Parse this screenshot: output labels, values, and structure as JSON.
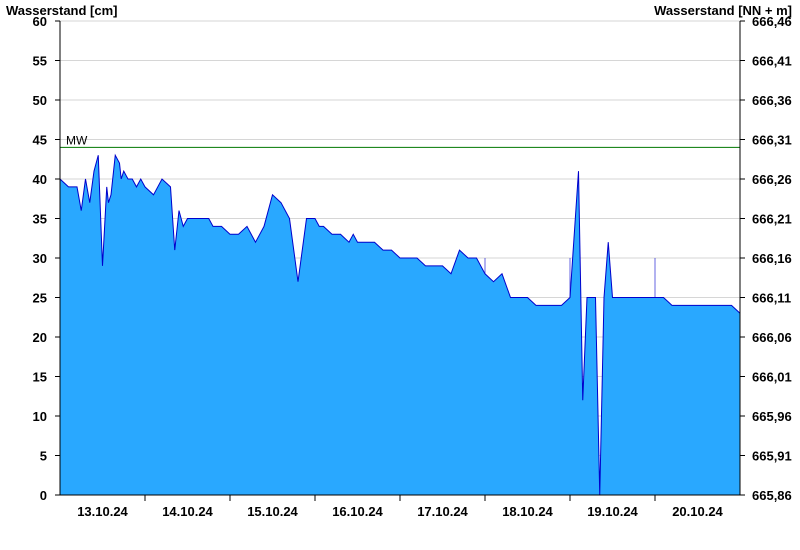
{
  "chart_data": {
    "type": "area",
    "ylabel_left": "Wasserstand [cm]",
    "ylabel_right": "Wasserstand [NN + m]",
    "ylim": [
      0,
      60
    ],
    "yticks": [
      0,
      5,
      10,
      15,
      20,
      25,
      30,
      35,
      40,
      45,
      50,
      55,
      60
    ],
    "right_ticks": [
      "665,86",
      "665,91",
      "665,96",
      "666,01",
      "666,06",
      "666,11",
      "666,16",
      "666,21",
      "666,26",
      "666,31",
      "666,36",
      "666,41",
      "666,46"
    ],
    "xlim": [
      0,
      8
    ],
    "xtick_labels": [
      "13.10.24",
      "14.10.24",
      "15.10.24",
      "16.10.24",
      "17.10.24",
      "18.10.24",
      "19.10.24",
      "20.10.24"
    ],
    "grid": true,
    "fill_color": "#29a8ff",
    "line_color": "#0000cc",
    "mw": {
      "label": "MW",
      "value": 44,
      "color": "#007700"
    },
    "series": [
      {
        "x": [
          0,
          0.1,
          0.15,
          0.2,
          0.25,
          0.3,
          0.35,
          0.4,
          0.45,
          0.5,
          0.55,
          0.57,
          0.6,
          0.65,
          0.7,
          0.72,
          0.75,
          0.8,
          0.85,
          0.9,
          0.95,
          1.0,
          1.1,
          1.2,
          1.3,
          1.35,
          1.4,
          1.45,
          1.5,
          1.6,
          1.7,
          1.75,
          1.8,
          1.9,
          2.0,
          2.1,
          2.2,
          2.3,
          2.35,
          2.4,
          2.5,
          2.6,
          2.7,
          2.8,
          2.9,
          3.0,
          3.05,
          3.1,
          3.2,
          3.3,
          3.4,
          3.45,
          3.5,
          3.6,
          3.7,
          3.8,
          3.9,
          4.0,
          4.1,
          4.2,
          4.3,
          4.4,
          4.5,
          4.6,
          4.7,
          4.8,
          4.9,
          5.0,
          5.1,
          5.2,
          5.3,
          5.4,
          5.5,
          5.6,
          5.7,
          5.8,
          5.9,
          6.0,
          6.1,
          6.15,
          6.2,
          6.3,
          6.35,
          6.4,
          6.45,
          6.5,
          6.6,
          6.7,
          6.8,
          6.9,
          7.0,
          7.1,
          7.2,
          7.3,
          7.4,
          7.5,
          7.6,
          7.7,
          7.8,
          7.9,
          8.0
        ],
        "y": [
          40,
          39,
          39,
          39,
          36,
          40,
          37,
          41,
          43,
          29,
          39,
          37,
          38,
          43,
          42,
          40,
          41,
          40,
          40,
          39,
          40,
          39,
          38,
          40,
          39,
          31,
          36,
          34,
          35,
          35,
          35,
          35,
          34,
          34,
          33,
          33,
          34,
          32,
          33,
          34,
          38,
          37,
          35,
          27,
          35,
          35,
          34,
          34,
          33,
          33,
          32,
          33,
          32,
          32,
          32,
          31,
          31,
          30,
          30,
          30,
          29,
          29,
          29,
          28,
          31,
          30,
          30,
          28,
          27,
          28,
          25,
          25,
          25,
          24,
          24,
          24,
          24,
          25,
          41,
          12,
          25,
          25,
          0,
          25,
          32,
          25,
          25,
          25,
          25,
          25,
          25,
          25,
          24,
          24,
          24,
          24,
          24,
          24,
          24,
          24,
          23
        ]
      }
    ]
  }
}
